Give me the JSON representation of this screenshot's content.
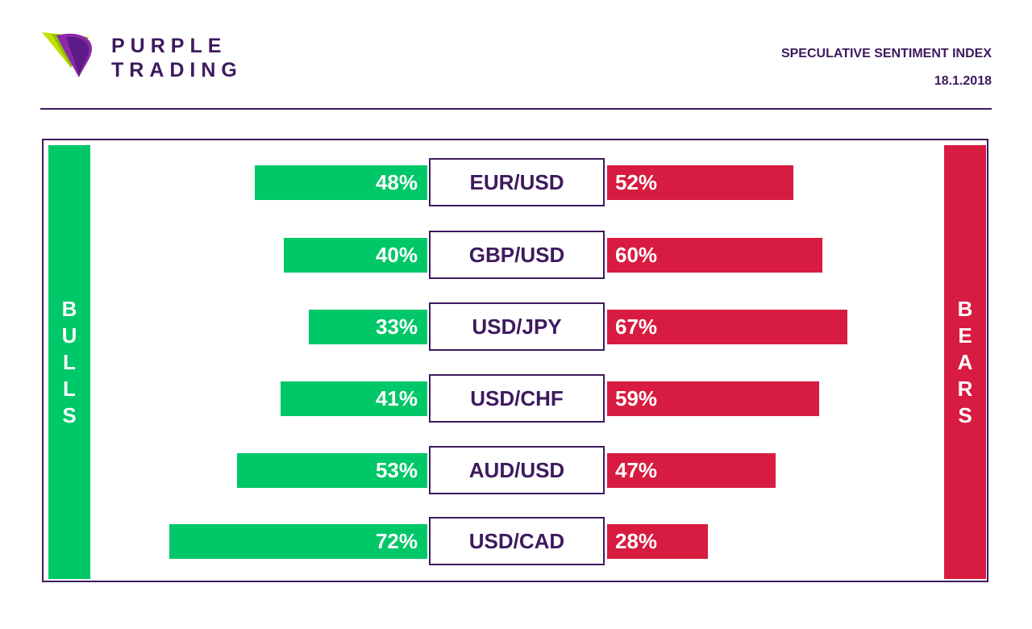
{
  "brand": {
    "name": "PURPLE TRADING",
    "logo_icon": "purple-trading-logo-icon",
    "colors": {
      "purple": "#3d1a5e",
      "violet": "#8b2aa8",
      "lime": "#c5e000"
    }
  },
  "header": {
    "title": "SPECULATIVE SENTIMENT INDEX",
    "date": "18.1.2018"
  },
  "chart_data": {
    "type": "bar",
    "orientation": "diverging-horizontal",
    "categories": [
      "EUR/USD",
      "GBP/USD",
      "USD/JPY",
      "USD/CHF",
      "AUD/USD",
      "USD/CAD"
    ],
    "series": [
      {
        "name": "BULLS",
        "color": "#00c767",
        "values": [
          48,
          40,
          33,
          41,
          53,
          72
        ],
        "labels": [
          "48%",
          "40%",
          "33%",
          "41%",
          "53%",
          "72%"
        ]
      },
      {
        "name": "BEARS",
        "color": "#d81b40",
        "values": [
          52,
          60,
          67,
          59,
          47,
          28
        ],
        "labels": [
          "52%",
          "60%",
          "67%",
          "59%",
          "47%",
          "28%"
        ]
      }
    ],
    "unit": "%",
    "xlim": [
      0,
      100
    ],
    "grid": false,
    "legend": "side columns"
  }
}
